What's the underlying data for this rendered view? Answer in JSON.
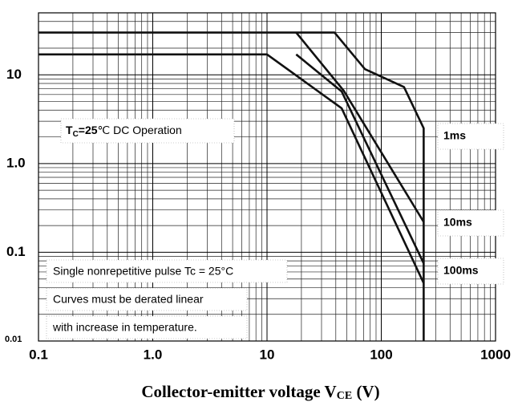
{
  "chart_data": {
    "type": "line",
    "log_x": true,
    "log_y": true,
    "grid": true,
    "x_label": {
      "main": "Collector-emitter voltage V",
      "sub": "CE",
      "rest": " (V)"
    },
    "xlim": [
      0.1,
      1000
    ],
    "xticks": [
      0.1,
      {
        "value": 1,
        "label": "1.0"
      },
      10,
      100,
      1000
    ],
    "ylim": [
      0.01,
      50
    ],
    "yticks": [
      0.01,
      0.1,
      {
        "value": 1,
        "label": "1.0"
      },
      10
    ],
    "x_minor_grid": [
      0.2,
      0.3,
      0.4,
      0.5,
      0.6,
      0.7,
      0.8,
      0.9,
      2,
      3,
      4,
      5,
      6,
      7,
      8,
      9,
      20,
      30,
      40,
      50,
      60,
      70,
      80,
      90,
      200,
      300,
      400,
      500,
      600,
      700,
      800,
      900
    ],
    "y_minor_grid": [
      0.02,
      0.03,
      0.04,
      0.05,
      0.06,
      0.07,
      0.08,
      0.09,
      0.2,
      0.3,
      0.4,
      0.5,
      0.6,
      0.7,
      0.8,
      0.9,
      2,
      3,
      4,
      5,
      6,
      7,
      8,
      9,
      20,
      30,
      40
    ],
    "condition": {
      "main": "T",
      "sub": "C",
      "value": "=25",
      "rest": "℃ DC Operation"
    },
    "notes": [
      "Single nonrepetitive pulse    Tc = 25°C",
      "Curves must be derated linear",
      "with increase in temperature."
    ],
    "series": [
      {
        "name": "1ms",
        "color": "#111111",
        "x": [
          0.1,
          39,
          72,
          158,
          235,
          235
        ],
        "values": [
          30,
          30,
          11.6,
          7.3,
          2.5,
          0.01
        ]
      },
      {
        "name": "10ms",
        "color": "#111111",
        "x": [
          18,
          47,
          235
        ],
        "values": [
          30,
          6.6,
          0.22
        ]
      },
      {
        "name": "100ms",
        "color": "#111111",
        "x": [
          18,
          45,
          235
        ],
        "values": [
          17,
          6.5,
          0.075
        ]
      },
      {
        "color": "#111111",
        "x": [
          0.1,
          10,
          45,
          235
        ],
        "values": [
          17,
          17,
          4.2,
          0.045
        ]
      }
    ]
  }
}
